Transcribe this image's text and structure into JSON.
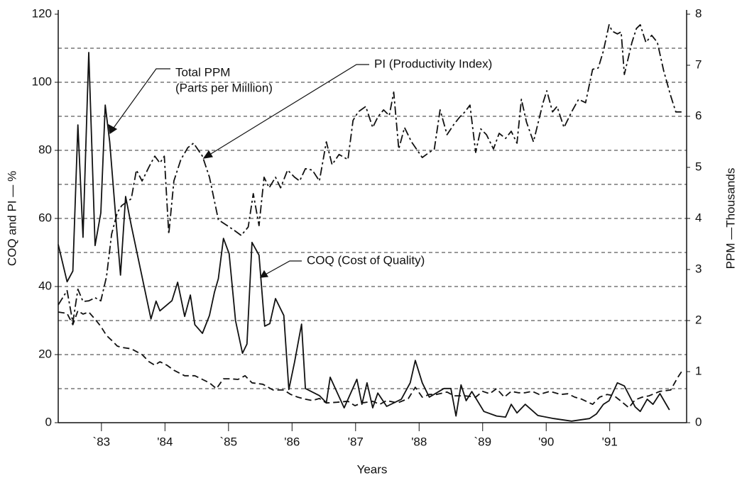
{
  "chart_data": {
    "type": "line",
    "xlabel": "Years",
    "ylabel": "COQ and PI — %",
    "y2label": "PPM —Thousands",
    "xlim": [
      82.32,
      92.21
    ],
    "xticks": [
      {
        "value": 83,
        "label": "`83"
      },
      {
        "value": 84,
        "label": "'84"
      },
      {
        "value": 85,
        "label": "`85"
      },
      {
        "value": 86,
        "label": "'86"
      },
      {
        "value": 87,
        "label": "'87"
      },
      {
        "value": 88,
        "label": "'88"
      },
      {
        "value": 89,
        "label": "`89"
      },
      {
        "value": 90,
        "label": "'90"
      },
      {
        "value": 91,
        "label": "'91"
      }
    ],
    "ylim": [
      0,
      120
    ],
    "yticks": [
      0,
      20,
      40,
      60,
      80,
      100,
      120
    ],
    "grid_lines": [
      10,
      20,
      30,
      40,
      50,
      60,
      70,
      80,
      90,
      100,
      110
    ],
    "y2lim": [
      0,
      8
    ],
    "y2ticks": [
      0,
      1,
      2,
      3,
      4,
      5,
      6,
      7,
      8
    ],
    "series": [
      {
        "name": "Total PPM",
        "axis": "y2",
        "color": "#111111",
        "style": "solid",
        "x": [
          82.32,
          82.46,
          82.55,
          82.63,
          82.71,
          82.8,
          82.9,
          82.99,
          83.06,
          83.13,
          83.22,
          83.3,
          83.38,
          83.47,
          83.78,
          83.86,
          83.92,
          84.11,
          84.2,
          84.31,
          84.4,
          84.47,
          84.59,
          84.7,
          84.78,
          84.84,
          84.92,
          85.01,
          85.11,
          85.22,
          85.29,
          85.37,
          85.48,
          85.57,
          85.65,
          85.74,
          85.87,
          85.95,
          86.04,
          86.15,
          86.21,
          86.43,
          86.54,
          86.6,
          86.82,
          87.02,
          87.1,
          87.18,
          87.27,
          87.35,
          87.49,
          87.72,
          87.86,
          87.94,
          88.05,
          88.16,
          88.39,
          88.5,
          88.58,
          88.66,
          88.74,
          88.83,
          89.02,
          89.22,
          89.36,
          89.45,
          89.54,
          89.67,
          89.87,
          90.12,
          90.4,
          90.68,
          90.79,
          90.9,
          90.99,
          91.12,
          91.23,
          91.4,
          91.48,
          91.59,
          91.68,
          91.79,
          91.94
        ],
        "values": [
          3.49,
          2.76,
          2.97,
          5.83,
          3.63,
          7.25,
          3.47,
          4.11,
          6.22,
          5.5,
          4.11,
          2.89,
          4.43,
          3.86,
          2.03,
          2.38,
          2.19,
          2.39,
          2.75,
          2.08,
          2.5,
          1.92,
          1.75,
          2.1,
          2.56,
          2.82,
          3.61,
          3.31,
          2.0,
          1.36,
          1.54,
          3.53,
          3.28,
          1.89,
          1.94,
          2.43,
          2.1,
          0.65,
          1.19,
          1.93,
          0.67,
          0.53,
          0.39,
          0.89,
          0.29,
          0.85,
          0.36,
          0.78,
          0.29,
          0.58,
          0.32,
          0.46,
          0.78,
          1.22,
          0.78,
          0.5,
          0.67,
          0.67,
          0.13,
          0.74,
          0.43,
          0.61,
          0.22,
          0.13,
          0.11,
          0.36,
          0.19,
          0.36,
          0.14,
          0.08,
          0.03,
          0.08,
          0.17,
          0.36,
          0.43,
          0.78,
          0.72,
          0.31,
          0.22,
          0.46,
          0.36,
          0.57,
          0.25
        ]
      },
      {
        "name": "PI (Productivity Index)",
        "axis": "y",
        "color": "#111111",
        "style": "dashdot",
        "x": [
          82.32,
          82.46,
          82.55,
          82.63,
          82.71,
          82.8,
          82.9,
          82.99,
          83.08,
          83.16,
          83.25,
          83.32,
          83.47,
          83.55,
          83.64,
          83.75,
          83.84,
          83.92,
          83.99,
          84.06,
          84.14,
          84.25,
          84.36,
          84.45,
          84.59,
          84.7,
          84.84,
          84.98,
          85.09,
          85.2,
          85.31,
          85.39,
          85.48,
          85.56,
          85.64,
          85.74,
          85.82,
          85.93,
          86.04,
          86.12,
          86.21,
          86.32,
          86.43,
          86.54,
          86.63,
          86.74,
          86.88,
          86.96,
          87.04,
          87.16,
          87.27,
          87.35,
          87.44,
          87.53,
          87.6,
          87.68,
          87.77,
          87.88,
          88.05,
          88.16,
          88.24,
          88.33,
          88.44,
          88.55,
          88.64,
          88.72,
          88.8,
          88.89,
          88.97,
          89.06,
          89.17,
          89.26,
          89.36,
          89.45,
          89.54,
          89.61,
          89.69,
          89.8,
          89.95,
          90.01,
          90.1,
          90.17,
          90.28,
          90.4,
          90.51,
          90.62,
          90.73,
          90.82,
          90.9,
          90.99,
          91.04,
          91.12,
          91.18,
          91.23,
          91.35,
          91.42,
          91.48,
          91.57,
          91.66,
          91.75,
          91.85,
          91.96,
          92.04,
          92.13
        ],
        "values": [
          34.6,
          38.8,
          29.4,
          39.2,
          35.6,
          35.8,
          36.7,
          35.8,
          42.9,
          55.4,
          61.7,
          63.8,
          65.8,
          74.2,
          71.0,
          75.2,
          78.3,
          76.3,
          78.3,
          55.4,
          71.0,
          77.3,
          80.8,
          82.1,
          78.3,
          72.1,
          59.6,
          57.9,
          56.5,
          55.0,
          57.5,
          67.3,
          57.9,
          72.1,
          69.0,
          72.1,
          69.0,
          74.2,
          72.1,
          71.0,
          74.6,
          74.2,
          71.0,
          82.5,
          75.8,
          78.8,
          77.3,
          88.8,
          91.3,
          92.9,
          86.7,
          89.8,
          91.9,
          90.2,
          97.1,
          80.4,
          86.7,
          82.5,
          77.9,
          79.4,
          80.4,
          91.9,
          84.6,
          87.7,
          89.8,
          91.3,
          93.3,
          79.4,
          86.3,
          84.6,
          80.4,
          85.0,
          83.5,
          85.6,
          82.1,
          95.0,
          88.3,
          82.5,
          94.0,
          97.5,
          91.3,
          92.9,
          86.7,
          91.3,
          95.0,
          94.0,
          103.8,
          104.2,
          109.2,
          116.9,
          115.0,
          114.2,
          114.8,
          102.3,
          111.7,
          115.8,
          116.9,
          111.7,
          113.8,
          111.7,
          103.3,
          96.0,
          91.3,
          91.3
        ]
      },
      {
        "name": "COQ (Cost of Quality)",
        "axis": "y",
        "color": "#111111",
        "style": "dashed",
        "x": [
          82.32,
          82.46,
          82.55,
          82.63,
          82.71,
          82.8,
          82.9,
          82.99,
          83.08,
          83.16,
          83.25,
          83.32,
          83.47,
          83.64,
          83.75,
          83.84,
          83.92,
          84.03,
          84.14,
          84.31,
          84.47,
          84.59,
          84.7,
          84.81,
          84.92,
          85.03,
          85.15,
          85.26,
          85.37,
          85.54,
          85.7,
          85.87,
          85.98,
          86.09,
          86.21,
          86.32,
          86.43,
          86.54,
          86.71,
          86.88,
          86.99,
          87.1,
          87.27,
          87.38,
          87.49,
          87.66,
          87.83,
          87.94,
          88.05,
          88.16,
          88.27,
          88.44,
          88.55,
          88.72,
          88.89,
          89.0,
          89.11,
          89.22,
          89.34,
          89.45,
          89.56,
          89.67,
          89.78,
          89.89,
          90.06,
          90.23,
          90.34,
          90.45,
          90.56,
          90.73,
          90.84,
          90.96,
          91.07,
          91.18,
          91.3,
          91.4,
          91.51,
          91.62,
          91.79,
          91.96,
          92.07,
          92.16
        ],
        "values": [
          32.5,
          32.1,
          28.8,
          32.9,
          31.9,
          32.5,
          30.4,
          28.3,
          25.6,
          24.2,
          22.5,
          22.1,
          21.7,
          20.0,
          17.9,
          16.9,
          17.9,
          16.9,
          15.4,
          13.8,
          13.8,
          12.7,
          11.7,
          10.0,
          12.9,
          12.9,
          12.7,
          13.8,
          11.7,
          11.3,
          9.6,
          9.6,
          8.3,
          7.5,
          6.9,
          6.5,
          7.1,
          5.8,
          6.0,
          6.3,
          5.0,
          5.8,
          6.3,
          5.4,
          6.5,
          5.8,
          7.1,
          10.4,
          7.5,
          8.3,
          8.3,
          9.0,
          7.9,
          7.9,
          7.5,
          9.2,
          8.5,
          10.0,
          7.5,
          9.2,
          8.8,
          8.8,
          9.2,
          8.3,
          9.2,
          8.3,
          8.5,
          7.5,
          6.9,
          5.4,
          7.5,
          8.3,
          7.9,
          6.3,
          4.4,
          6.7,
          7.5,
          7.9,
          9.2,
          9.6,
          13.3,
          15.8
        ]
      }
    ],
    "annotations": [
      {
        "text": "(Parts per Miillion)"
      }
    ]
  }
}
